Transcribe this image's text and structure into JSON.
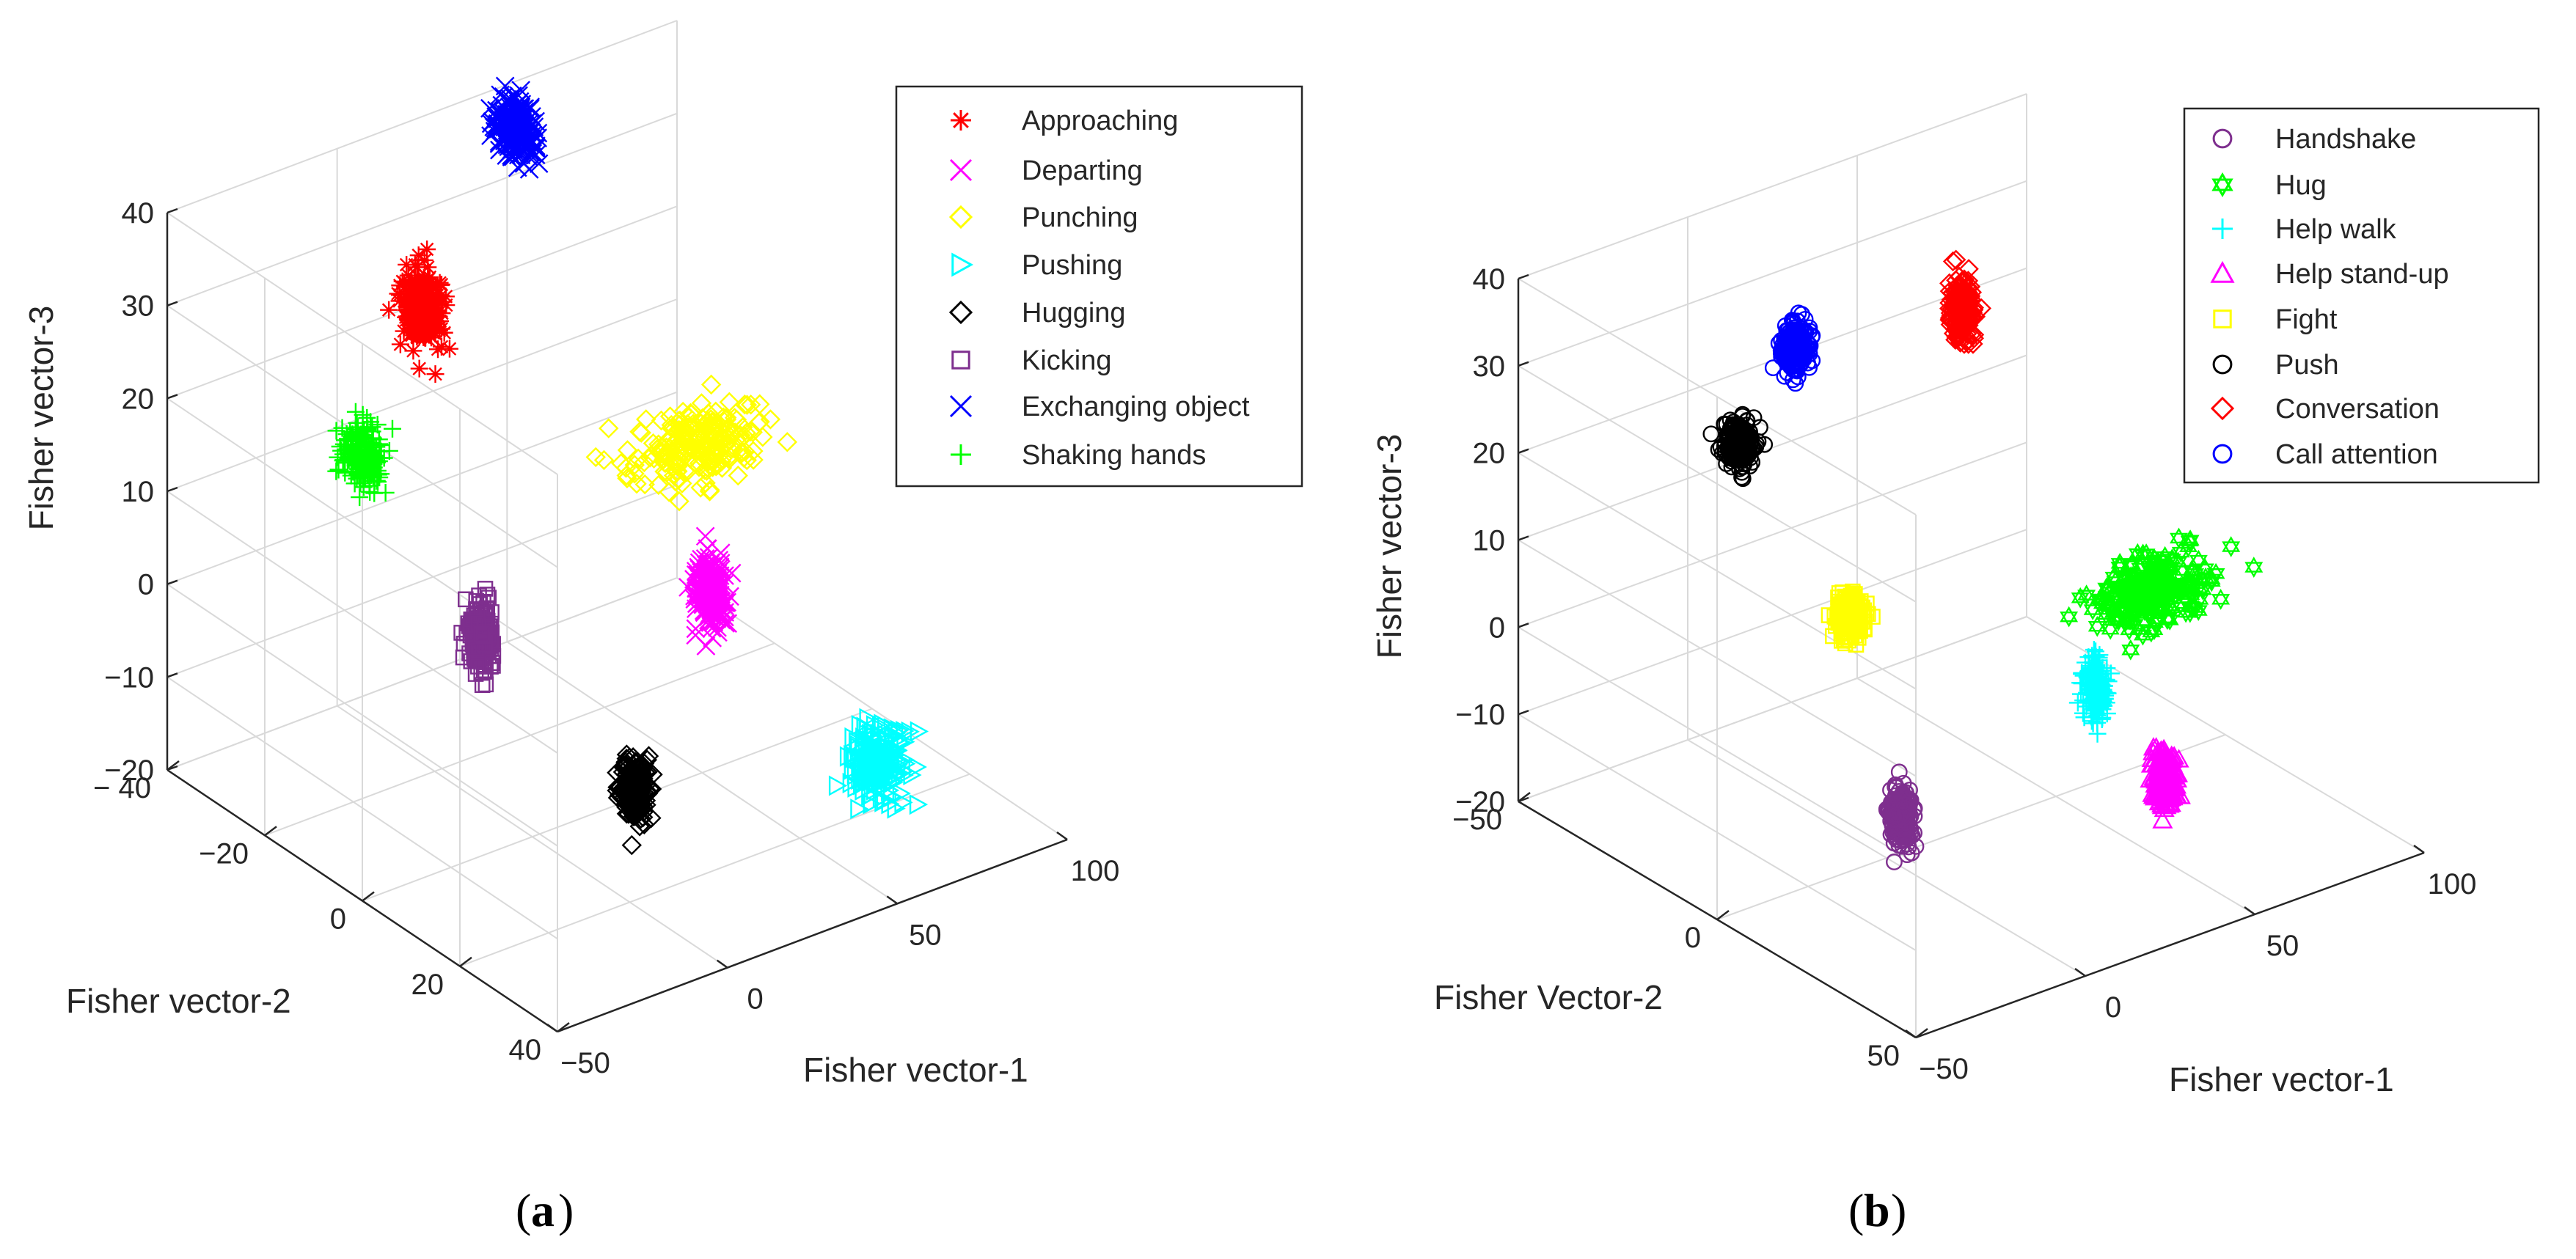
{
  "chart_data": [
    {
      "panel_label": "a",
      "type": "scatter",
      "title": "",
      "xlabel": "Fisher vector-1",
      "ylabel": "Fisher vector-2",
      "zlabel": "Fisher vector-3",
      "xlim": [
        -50,
        100
      ],
      "ylim": [
        -40,
        40
      ],
      "zlim": [
        -20,
        40
      ],
      "xticks": [
        -50,
        0,
        50,
        100
      ],
      "yticks": [
        -40,
        -20,
        0,
        20,
        40
      ],
      "zticks": [
        -20,
        -10,
        0,
        10,
        20,
        30,
        40
      ],
      "tick_labels": {
        "x": [
          "−50",
          "0",
          "50",
          "100"
        ],
        "y": [
          "− 40",
          "−20",
          "0",
          "20",
          "40"
        ],
        "z": [
          "−20",
          "−10",
          "0",
          "10",
          "20",
          "30",
          "40"
        ]
      },
      "grid": true,
      "legend_position": "top-right",
      "series": [
        {
          "name": "Approaching",
          "color": "#ff0000",
          "marker": "asterisk",
          "center": [
            18,
            35,
            22
          ],
          "spread": [
            4,
            3,
            3.5
          ]
        },
        {
          "name": "Departing",
          "color": "#ff00ff",
          "marker": "x",
          "center": [
            55,
            2,
            -2
          ],
          "spread": [
            3,
            2,
            3.5
          ]
        },
        {
          "name": "Punching",
          "color": "#ffff00",
          "marker": "diamond",
          "center": [
            90,
            30,
            -1
          ],
          "spread": [
            16,
            6,
            2.5
          ]
        },
        {
          "name": "Pushing",
          "color": "#00ffff",
          "marker": "triangle-right",
          "center": [
            55,
            -33,
            -8
          ],
          "spread": [
            6,
            3,
            3
          ]
        },
        {
          "name": "Hugging",
          "color": "#000000",
          "marker": "diamond",
          "center": [
            -20,
            -35,
            0
          ],
          "spread": [
            2,
            2,
            3
          ]
        },
        {
          "name": "Kicking",
          "color": "#7e2f8e",
          "marker": "square",
          "center": [
            -18,
            -2,
            5
          ],
          "spread": [
            2,
            2,
            3
          ]
        },
        {
          "name": "Exchanging object",
          "color": "#0000ff",
          "marker": "x",
          "center": [
            60,
            45,
            32
          ],
          "spread": [
            3,
            3,
            3
          ]
        },
        {
          "name": "Shaking hands",
          "color": "#00ff00",
          "marker": "plus",
          "center": [
            -50,
            0,
            28
          ],
          "spread": [
            3,
            3,
            3
          ]
        }
      ]
    },
    {
      "panel_label": "b",
      "type": "scatter",
      "title": "",
      "xlabel": "Fisher vector-1",
      "ylabel": "Fisher Vector-2",
      "zlabel": "Fisher vector-3",
      "xlim": [
        -50,
        100
      ],
      "ylim": [
        -50,
        50
      ],
      "zlim": [
        -20,
        40
      ],
      "xticks": [
        -50,
        0,
        50,
        100
      ],
      "yticks": [
        -50,
        0,
        50
      ],
      "zticks": [
        -20,
        -10,
        0,
        10,
        20,
        30,
        40
      ],
      "tick_labels": {
        "x": [
          "−50",
          "0",
          "50",
          "100"
        ],
        "y": [
          "−50",
          "0",
          "50"
        ],
        "z": [
          "−20",
          "−10",
          "0",
          "10",
          "20",
          "30",
          "40"
        ]
      },
      "grid": true,
      "legend_position": "top-right",
      "series": [
        {
          "name": "Handshake",
          "color": "#7e2f8e",
          "marker": "circle",
          "center": [
            -25,
            -25,
            -5
          ],
          "spread": [
            2,
            2,
            3
          ]
        },
        {
          "name": "Hug",
          "color": "#00ff00",
          "marker": "hexagram",
          "center": [
            90,
            10,
            -5
          ],
          "spread": [
            14,
            5,
            3
          ]
        },
        {
          "name": "Help walk",
          "color": "#00ffff",
          "marker": "plus",
          "center": [
            50,
            -10,
            -5
          ],
          "spread": [
            2,
            2,
            3
          ]
        },
        {
          "name": "Help stand-up",
          "color": "#ff00ff",
          "marker": "triangle-up",
          "center": [
            35,
            -40,
            -5
          ],
          "spread": [
            2,
            2,
            3
          ]
        },
        {
          "name": "Fight",
          "color": "#ffff00",
          "marker": "square",
          "center": [
            -5,
            5,
            7
          ],
          "spread": [
            3,
            2,
            2
          ]
        },
        {
          "name": "Push",
          "color": "#000000",
          "marker": "circle",
          "center": [
            -20,
            20,
            25
          ],
          "spread": [
            3,
            2,
            2.5
          ]
        },
        {
          "name": "Conversation",
          "color": "#ff0000",
          "marker": "diamond",
          "center": [
            75,
            45,
            20
          ],
          "spread": [
            2,
            2,
            3
          ]
        },
        {
          "name": "Call attention",
          "color": "#0000ff",
          "marker": "circle",
          "center": [
            20,
            40,
            25
          ],
          "spread": [
            3,
            2,
            2.5
          ]
        }
      ]
    }
  ]
}
